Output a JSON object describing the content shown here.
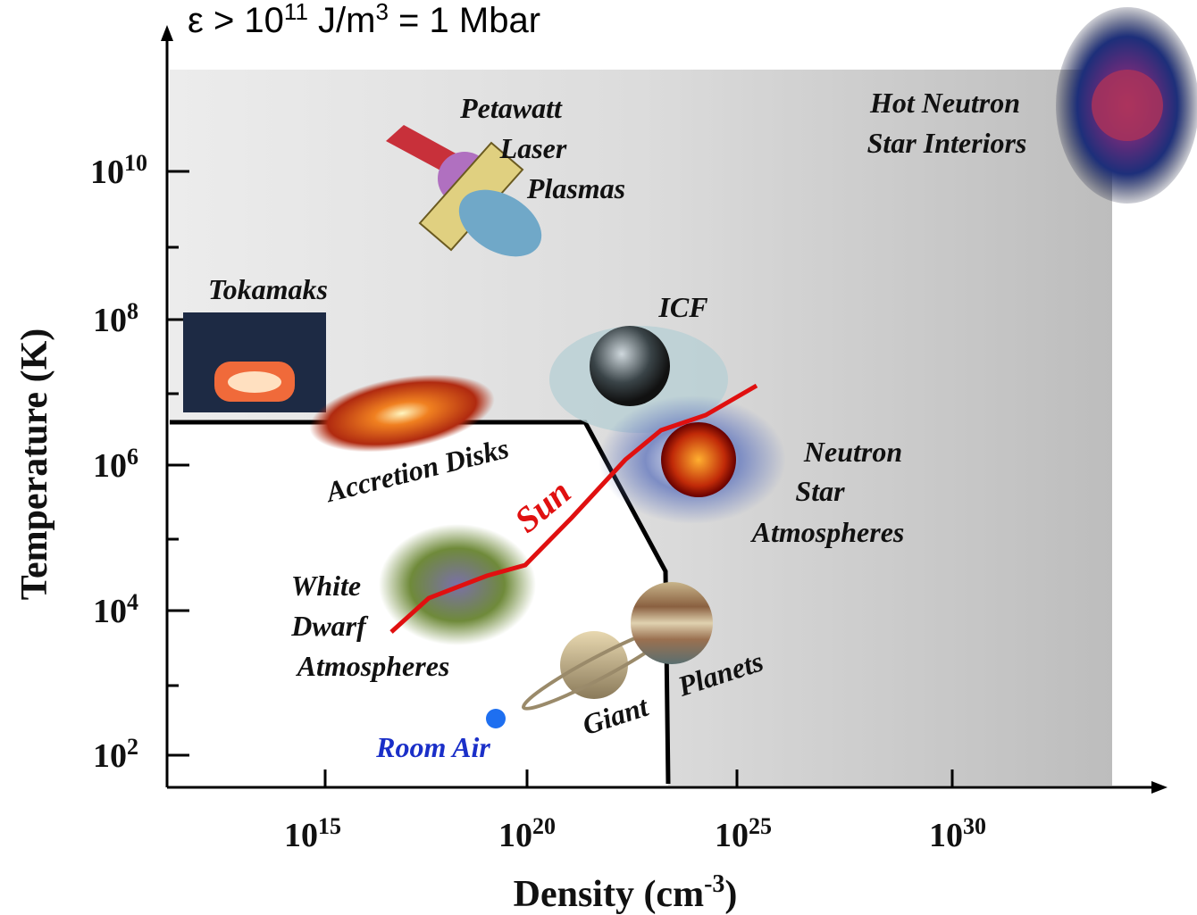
{
  "title": {
    "base": "ε > 10",
    "exp": "11",
    "mid": " J/m",
    "exp2": "3",
    "tail": " = 1 Mbar"
  },
  "y_axis": {
    "label": "Temperature (K)",
    "ticks": [
      {
        "base": "10",
        "exp": "10"
      },
      {
        "base": "10",
        "exp": "8"
      },
      {
        "base": "10",
        "exp": "6"
      },
      {
        "base": "10",
        "exp": "4"
      },
      {
        "base": "10",
        "exp": "2"
      }
    ]
  },
  "x_axis": {
    "label": "Density (cm",
    "exp": "-3",
    "close": ")",
    "ticks": [
      {
        "base": "10",
        "exp": "15"
      },
      {
        "base": "10",
        "exp": "20"
      },
      {
        "base": "10",
        "exp": "25"
      },
      {
        "base": "10",
        "exp": "30"
      }
    ]
  },
  "regions": {
    "petawatt": [
      "Petawatt",
      "Laser",
      "Plasmas"
    ],
    "hot_neutron": [
      "Hot Neutron",
      "Star Interiors"
    ],
    "tokamaks": "Tokamaks",
    "icf": "ICF",
    "accretion": "Accretion Disks",
    "sun": "Sun",
    "neutron_atm": [
      "Neutron",
      "Star",
      "Atmospheres"
    ],
    "white_dwarf": [
      "White",
      "Dwarf",
      "Atmospheres"
    ],
    "giant": "Giant",
    "planets": "Planets",
    "room_air": "Room Air"
  }
}
